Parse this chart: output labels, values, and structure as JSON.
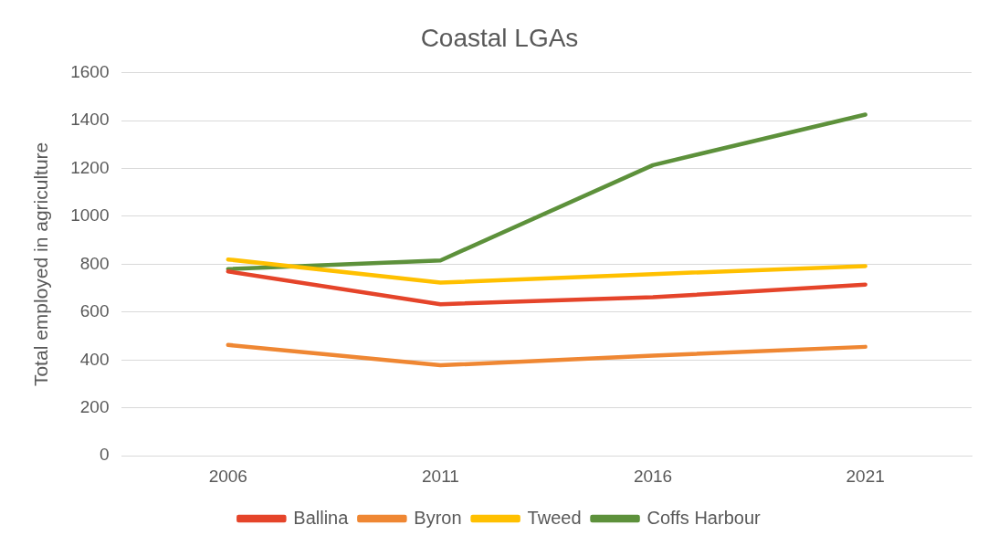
{
  "chart_data": {
    "type": "line",
    "title": "Coastal LGAs",
    "ylabel": "Total employed in agriculture",
    "categories": [
      "2006",
      "2011",
      "2016",
      "2021"
    ],
    "series": [
      {
        "name": "Ballina",
        "color": "#e5442a",
        "values": [
          770,
          633,
          662,
          715
        ]
      },
      {
        "name": "Byron",
        "color": "#ef8733",
        "values": [
          463,
          378,
          418,
          455
        ]
      },
      {
        "name": "Tweed",
        "color": "#ffc000",
        "values": [
          820,
          723,
          759,
          792
        ]
      },
      {
        "name": "Coffs Harbour",
        "color": "#5d913b",
        "values": [
          780,
          816,
          1214,
          1425
        ]
      }
    ],
    "ylim": [
      0,
      1600
    ],
    "yticks": [
      0,
      200,
      400,
      600,
      800,
      1000,
      1200,
      1400,
      1600
    ],
    "grid": "y",
    "legend": "bottom",
    "marker": "none",
    "line_style": "solid"
  }
}
